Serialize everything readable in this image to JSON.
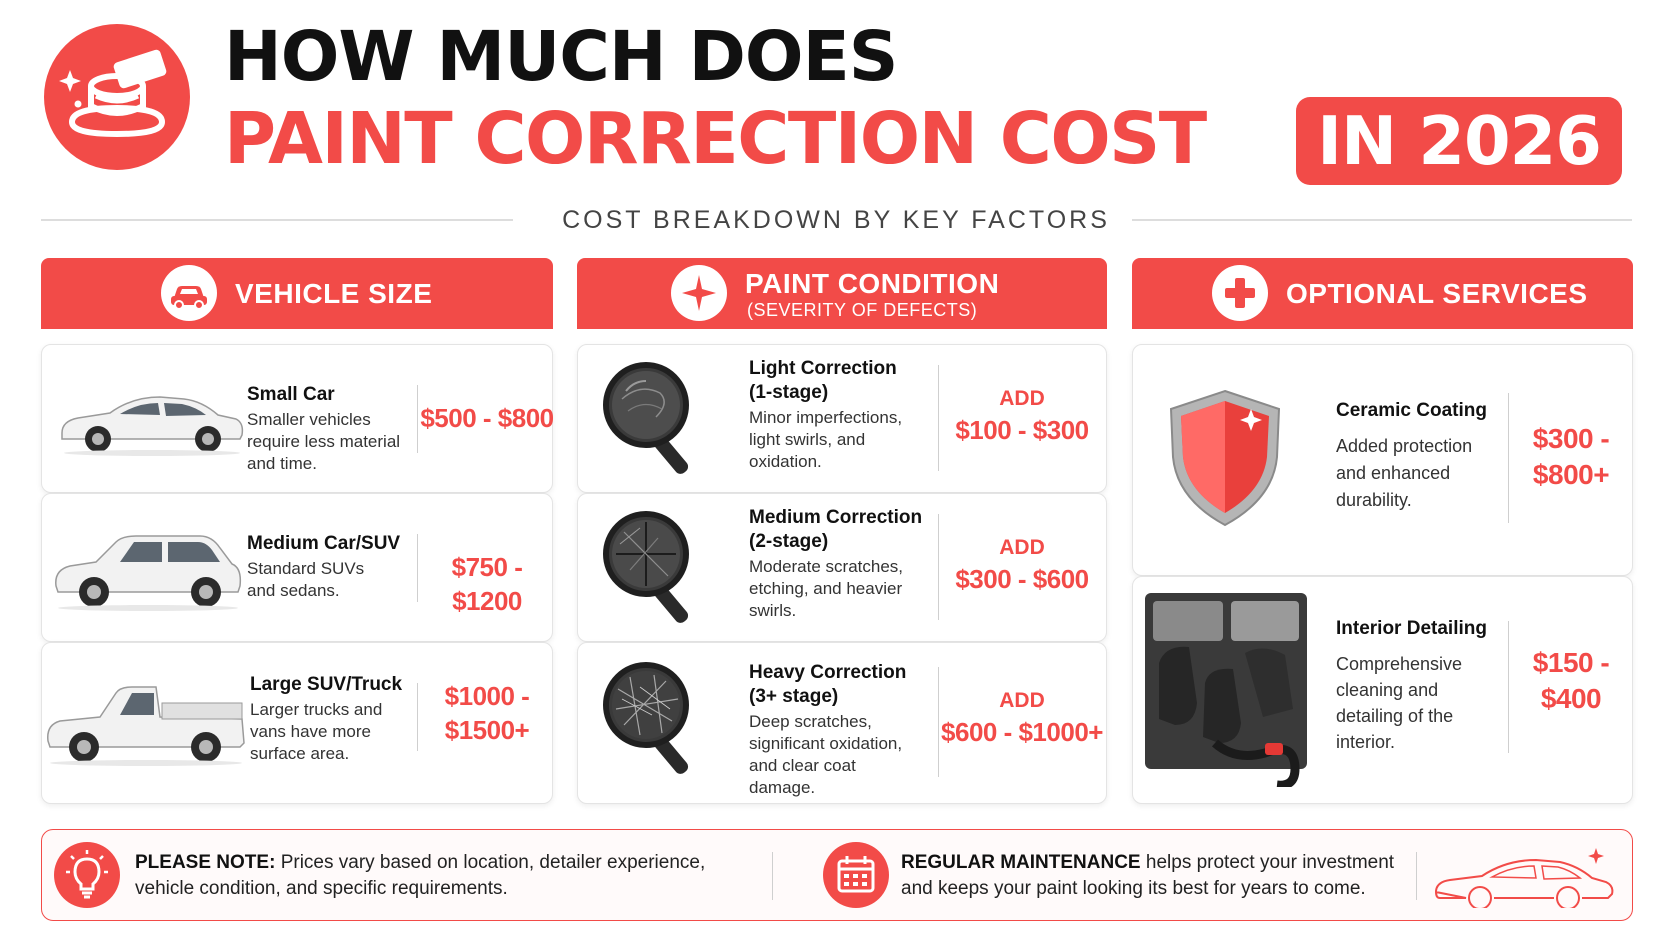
{
  "header": {
    "title_line1": "HOW MUCH DOES",
    "title_line2": "PAINT CORRECTION COST",
    "year_badge": "IN 2026",
    "subtitle": "COST BREAKDOWN BY KEY FACTORS",
    "logo_icon": "polisher-icon"
  },
  "colors": {
    "accent": "#f24b48",
    "text": "#111111",
    "muted": "#444444",
    "border": "#e4e4e4"
  },
  "vehicle_size": {
    "title": "VEHICLE SIZE",
    "icon": "car-icon",
    "items": [
      {
        "name": "Small Car",
        "desc": "Smaller vehicles require less material and time.",
        "price": "$500 - $800",
        "image": "sedan-image"
      },
      {
        "name": "Medium Car/SUV",
        "desc": "Standard SUVs and sedans.",
        "price": "$750 - $1200",
        "image": "suv-image"
      },
      {
        "name": "Large SUV/Truck",
        "desc": "Larger trucks and vans have more surface area.",
        "price": "$1000 - $1500+",
        "image": "truck-image"
      }
    ]
  },
  "paint_condition": {
    "title": "PAINT CONDITION",
    "subtitle": "(SEVERITY OF DEFECTS)",
    "icon": "sparkle-icon",
    "items": [
      {
        "name_line1": "Light Correction",
        "name_line2": "(1-stage)",
        "desc": "Minor imperfections, light swirls, and oxidation.",
        "add_label": "ADD",
        "price": "$100 - $300",
        "image": "magnifier-light-swirls"
      },
      {
        "name_line1": "Medium Correction",
        "name_line2": "(2-stage)",
        "desc": "Moderate scratches, etching, and heavier swirls.",
        "add_label": "ADD",
        "price": "$300 - $600",
        "image": "magnifier-moderate-scratches"
      },
      {
        "name_line1": "Heavy Correction",
        "name_line2": "(3+ stage)",
        "desc": "Deep scratches, significant oxidation, and clear coat damage.",
        "add_label": "ADD",
        "price": "$600 - $1000+",
        "image": "magnifier-deep-scratches"
      }
    ]
  },
  "optional_services": {
    "title": "OPTIONAL SERVICES",
    "icon": "plus-icon",
    "items": [
      {
        "name": "Ceramic Coating",
        "desc": "Added protection and enhanced durability.",
        "price": "$300 - $800+",
        "image": "shield-image"
      },
      {
        "name": "Interior Detailing",
        "desc": "Comprehensive cleaning and detailing of the interior.",
        "price": "$150 - $400",
        "image": "car-interior-image"
      }
    ]
  },
  "footer": {
    "note_label": "PLEASE NOTE:",
    "note_text": "Prices vary based on location, detailer experience, vehicle condition, and specific requirements.",
    "note_icon": "lightbulb-icon",
    "maint_label": "REGULAR MAINTENANCE",
    "maint_text": "helps protect your investment and keeps your paint looking its best for years to come.",
    "maint_icon": "calendar-icon",
    "car_outline_icon": "car-outline-icon"
  }
}
